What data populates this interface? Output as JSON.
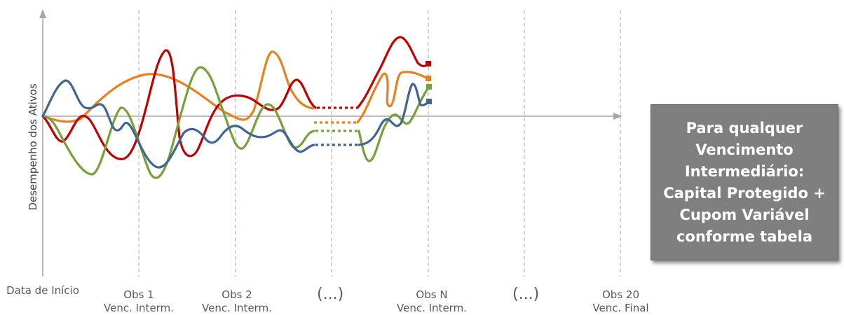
{
  "axis": {
    "ylabel": "Desempenho dos Ativos",
    "ticks": [
      {
        "line1": "Data de Início",
        "line2": ""
      },
      {
        "line1": "Obs 1",
        "line2": "Venc. Interm."
      },
      {
        "line1": "Obs 2",
        "line2": "Venc. Interm."
      },
      {
        "line1": "(...)",
        "line2": ""
      },
      {
        "line1": "Obs N",
        "line2": "Venc. Interm."
      },
      {
        "line1": "(...)",
        "line2": ""
      },
      {
        "line1": "Obs 20",
        "line2": "Venc. Final"
      }
    ]
  },
  "callout": {
    "text": "Para qualquer Vencimento Intermediário: Capital Protegido + Cupom Variável conforme tabela"
  },
  "colors": {
    "blue": "#3f6592",
    "red": "#c00000",
    "orange": "#e8801f",
    "green": "#77a03a",
    "axis": "#a6a6a6",
    "callout_bg": "#7f7f7f"
  }
}
